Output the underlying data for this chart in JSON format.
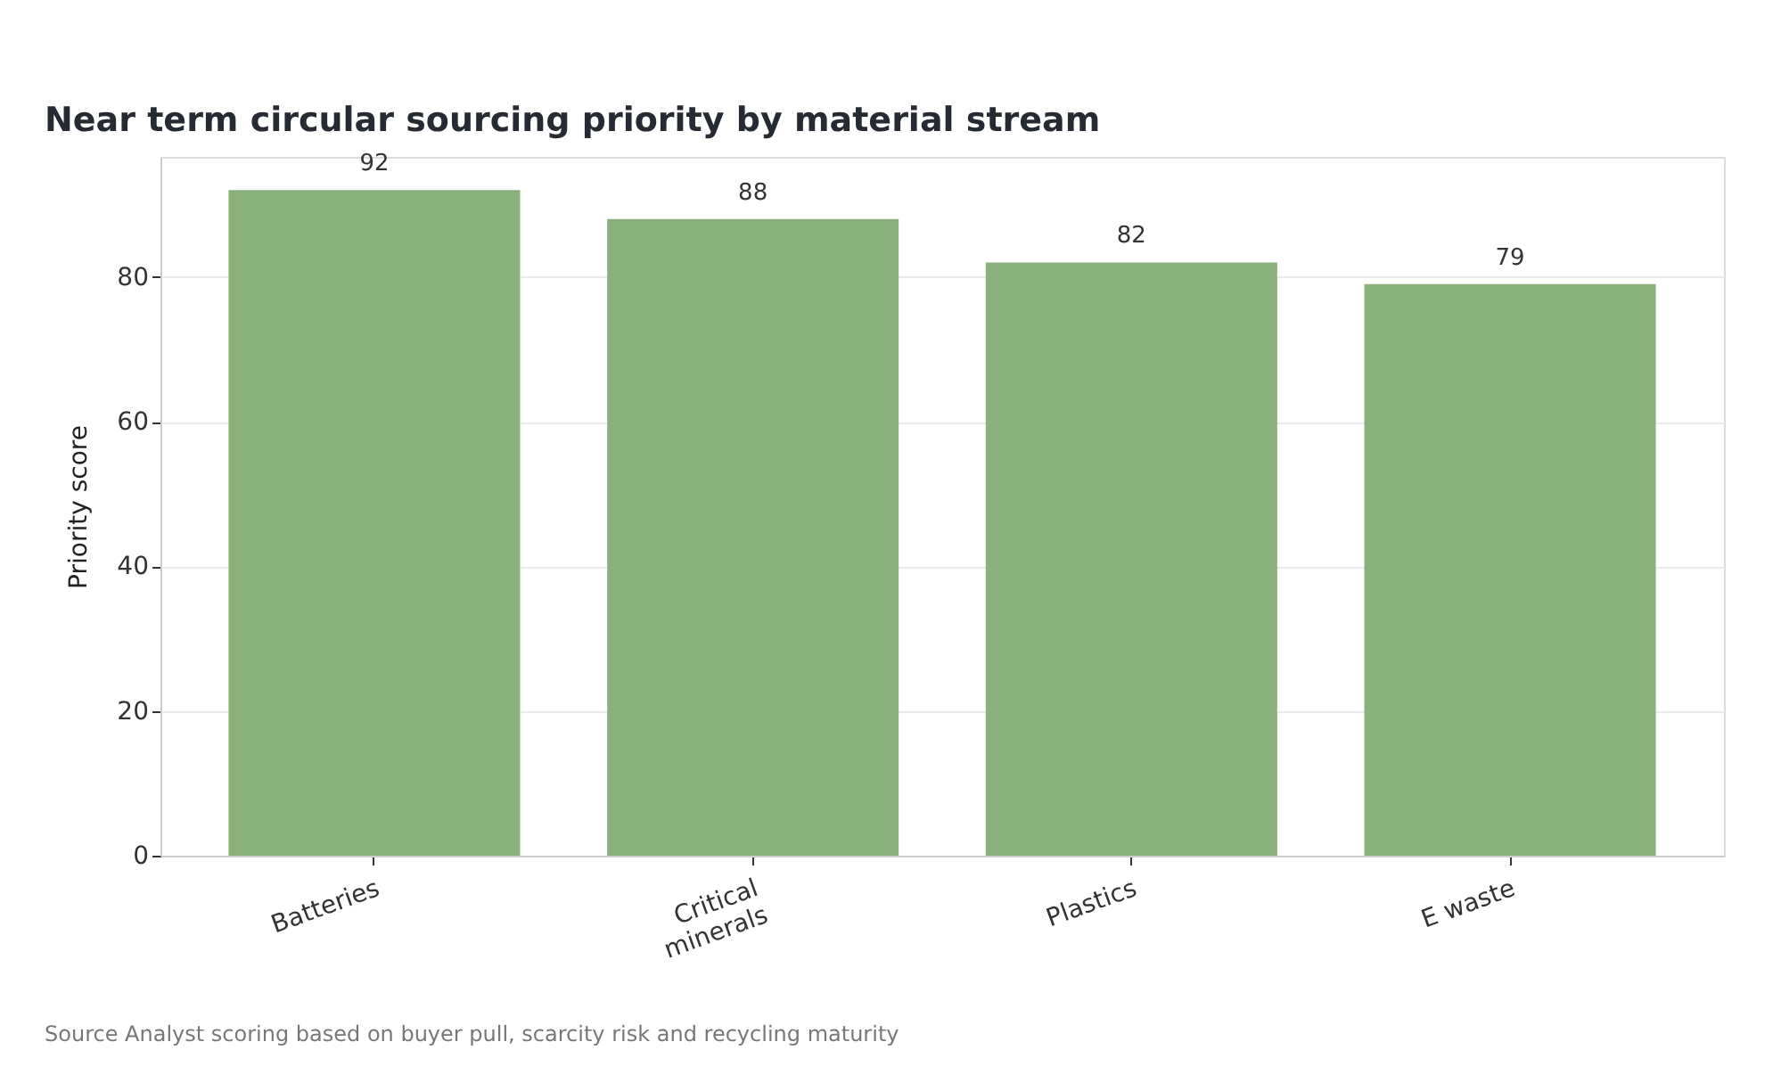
{
  "chart_data": {
    "type": "bar",
    "title": "Near term circular sourcing priority by material stream",
    "ylabel": "Priority score",
    "categories": [
      "Batteries",
      "Critical\nminerals",
      "Plastics",
      "E waste"
    ],
    "values": [
      92,
      88,
      82,
      79
    ],
    "color": "#8ab07c",
    "ylim": [
      0,
      96.6
    ],
    "yticks": [
      0,
      20,
      40,
      60,
      80
    ],
    "grid": "y",
    "data_labels": true,
    "annotations": [
      "Source  Analyst scoring based on buyer pull, scarcity risk and recycling maturity"
    ]
  }
}
